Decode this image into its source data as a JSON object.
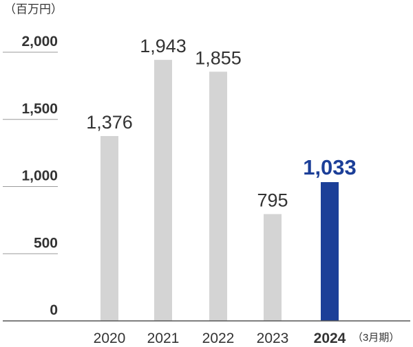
{
  "chart_data": {
    "type": "bar",
    "unit_label": "（百万円）",
    "x_suffix": "（3月期）",
    "categories": [
      "2020",
      "2021",
      "2022",
      "2023",
      "2024"
    ],
    "values": [
      1376,
      1943,
      1855,
      795,
      1033
    ],
    "value_labels": [
      "1,376",
      "1,943",
      "1,855",
      "795",
      "1,033"
    ],
    "highlight_index": 4,
    "ylim": [
      0,
      2000
    ],
    "yticks": [
      0,
      500,
      1000,
      1500,
      2000
    ],
    "ytick_labels": [
      "0",
      "500",
      "1,000",
      "1,500",
      "2,000"
    ],
    "grid": true,
    "colors": {
      "bar": "#d4d4d4",
      "highlight": "#1c3f98",
      "axis": "#555555",
      "grid": "#9a9a9a"
    }
  }
}
